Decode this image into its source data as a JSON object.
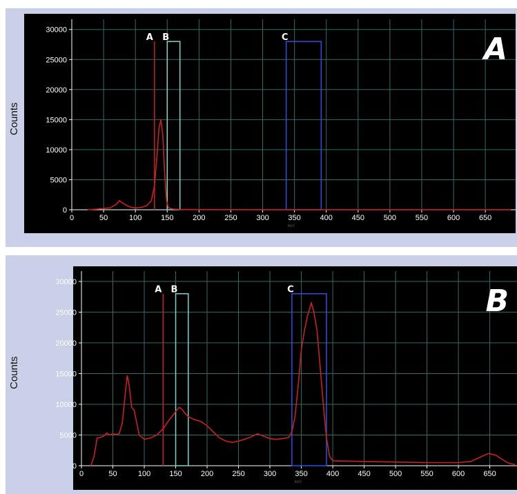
{
  "chart_data": [
    {
      "type": "line",
      "panel_label": "A",
      "ylabel": "Counts",
      "xlabel": "keV",
      "xlim": [
        0,
        690
      ],
      "ylim": [
        0,
        31000
      ],
      "x_ticks": [
        0,
        50,
        100,
        150,
        200,
        250,
        300,
        350,
        400,
        450,
        500,
        550,
        600,
        650
      ],
      "y_ticks": [
        0,
        5000,
        10000,
        15000,
        20000,
        25000,
        30000
      ],
      "grid": true,
      "line_color": "#cc2020",
      "series": [
        {
          "points": [
            [
              25,
              0
            ],
            [
              40,
              100
            ],
            [
              60,
              300
            ],
            [
              70,
              900
            ],
            [
              75,
              1500
            ],
            [
              80,
              1100
            ],
            [
              90,
              500
            ],
            [
              100,
              300
            ],
            [
              110,
              400
            ],
            [
              118,
              700
            ],
            [
              125,
              1500
            ],
            [
              130,
              4000
            ],
            [
              134,
              9000
            ],
            [
              137,
              13500
            ],
            [
              140,
              15000
            ],
            [
              143,
              12500
            ],
            [
              146,
              6000
            ],
            [
              149,
              1500
            ],
            [
              152,
              300
            ],
            [
              160,
              100
            ],
            [
              170,
              50
            ],
            [
              180,
              30
            ],
            [
              200,
              20
            ],
            [
              300,
              10
            ],
            [
              400,
              10
            ],
            [
              600,
              10
            ],
            [
              690,
              10
            ]
          ]
        }
      ],
      "windows": [
        {
          "label": "A",
          "type": "line",
          "x": 130,
          "height": 28000,
          "color": "#cc2020"
        },
        {
          "label": "B",
          "type": "box",
          "x0": 150,
          "x1": 170,
          "height": 28000,
          "color": "#7fd4cc"
        },
        {
          "label": "C",
          "type": "box",
          "x0": 337,
          "x1": 392,
          "height": 28000,
          "color": "#3050e0"
        }
      ]
    },
    {
      "type": "line",
      "panel_label": "B",
      "ylabel": "Counts",
      "xlabel": "keV",
      "xlim": [
        0,
        690
      ],
      "ylim": [
        0,
        31000
      ],
      "x_ticks": [
        0,
        50,
        100,
        150,
        200,
        250,
        300,
        350,
        400,
        450,
        500,
        550,
        600,
        650
      ],
      "y_ticks": [
        0,
        5000,
        10000,
        15000,
        20000,
        25000,
        30000
      ],
      "grid": true,
      "line_color": "#cc2020",
      "series": [
        {
          "points": [
            [
              15,
              0
            ],
            [
              20,
              1500
            ],
            [
              25,
              4500
            ],
            [
              30,
              4600
            ],
            [
              35,
              4800
            ],
            [
              40,
              5300
            ],
            [
              45,
              5000
            ],
            [
              50,
              5200
            ],
            [
              55,
              5100
            ],
            [
              60,
              5200
            ],
            [
              65,
              7000
            ],
            [
              70,
              12000
            ],
            [
              73,
              14700
            ],
            [
              76,
              13000
            ],
            [
              80,
              9500
            ],
            [
              84,
              9000
            ],
            [
              88,
              7000
            ],
            [
              92,
              5000
            ],
            [
              100,
              4300
            ],
            [
              110,
              4500
            ],
            [
              120,
              5000
            ],
            [
              130,
              6000
            ],
            [
              140,
              7500
            ],
            [
              150,
              8800
            ],
            [
              155,
              9500
            ],
            [
              160,
              9200
            ],
            [
              165,
              8500
            ],
            [
              170,
              8000
            ],
            [
              180,
              7500
            ],
            [
              190,
              7200
            ],
            [
              200,
              6500
            ],
            [
              210,
              5500
            ],
            [
              220,
              4500
            ],
            [
              230,
              4000
            ],
            [
              240,
              3800
            ],
            [
              250,
              4000
            ],
            [
              260,
              4300
            ],
            [
              270,
              4700
            ],
            [
              280,
              5200
            ],
            [
              290,
              4800
            ],
            [
              300,
              4400
            ],
            [
              310,
              4300
            ],
            [
              320,
              4400
            ],
            [
              330,
              4600
            ],
            [
              335,
              5500
            ],
            [
              340,
              8000
            ],
            [
              345,
              13000
            ],
            [
              350,
              19000
            ],
            [
              355,
              22000
            ],
            [
              360,
              24500
            ],
            [
              363,
              25500
            ],
            [
              366,
              26500
            ],
            [
              370,
              25000
            ],
            [
              375,
              22000
            ],
            [
              380,
              16000
            ],
            [
              385,
              10000
            ],
            [
              390,
              4500
            ],
            [
              395,
              1500
            ],
            [
              400,
              800
            ],
            [
              450,
              700
            ],
            [
              500,
              600
            ],
            [
              550,
              500
            ],
            [
              600,
              500
            ],
            [
              620,
              700
            ],
            [
              635,
              1400
            ],
            [
              648,
              2000
            ],
            [
              660,
              1700
            ],
            [
              670,
              1000
            ],
            [
              680,
              400
            ],
            [
              690,
              200
            ]
          ]
        }
      ],
      "windows": [
        {
          "label": "A",
          "type": "line",
          "x": 130,
          "height": 28000,
          "color": "#cc2020"
        },
        {
          "label": "B",
          "type": "box",
          "x0": 150,
          "x1": 170,
          "height": 28000,
          "color": "#7fd4cc"
        },
        {
          "label": "C",
          "type": "box",
          "x0": 335,
          "x1": 390,
          "height": 28000,
          "color": "#3050e0"
        }
      ]
    }
  ]
}
